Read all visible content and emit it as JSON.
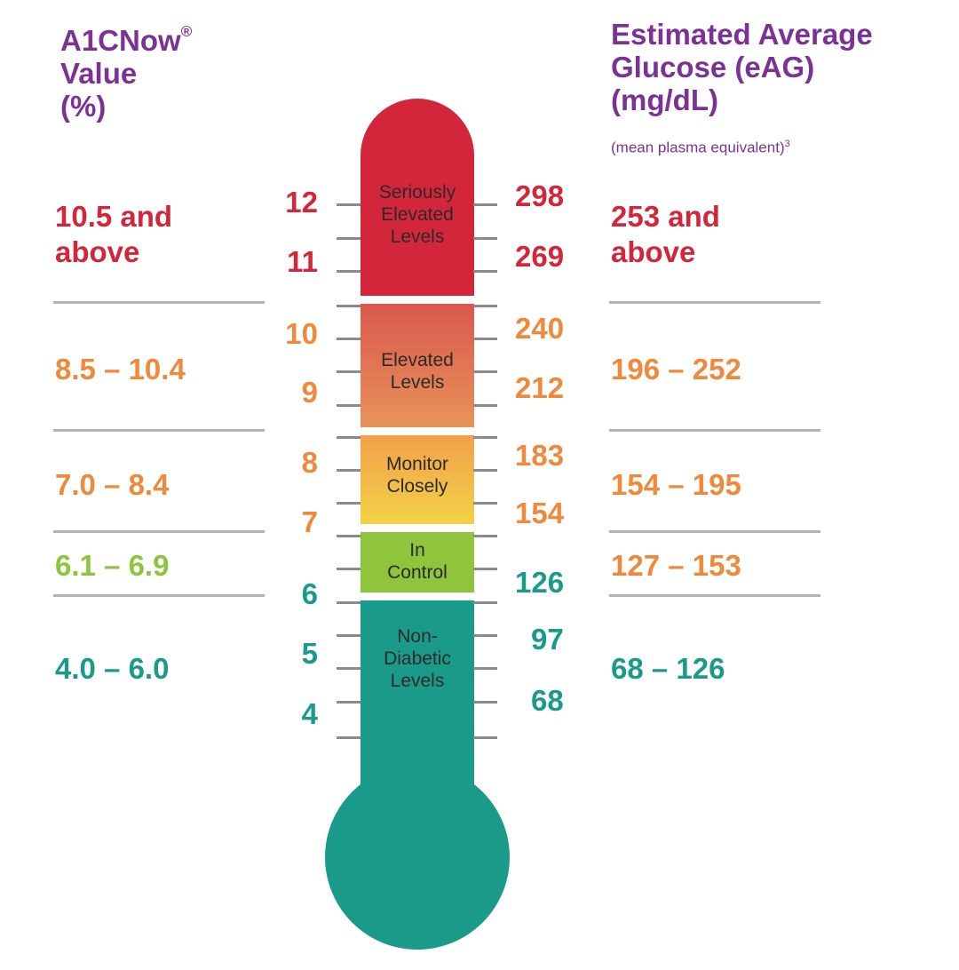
{
  "colors": {
    "purple": "#7b3294",
    "red": "#d4263a",
    "orange": "#ef8a3c",
    "lime": "#8fc43d",
    "teal": "#1a9b8a"
  },
  "left_header": {
    "line1": "A1CNow",
    "reg": "®",
    "line2": "Value",
    "line3": "(%)"
  },
  "right_header": {
    "line1": "Estimated Average",
    "line2": "Glucose (eAG)",
    "line3": "(mg/dL)",
    "note": "(mean plasma equivalent)",
    "note_sup": "3"
  },
  "bands": [
    {
      "a1c_range_line1": "10.5 and",
      "a1c_range_line2": "above",
      "eag_range_line1": "253 and",
      "eag_range_line2": "above",
      "level_line1": "Seriously",
      "level_line2": "Elevated",
      "level_line3": "Levels"
    },
    {
      "a1c_range": "8.5 – 10.4",
      "eag_range": "196 – 252",
      "level_line1": "Elevated",
      "level_line2": "Levels"
    },
    {
      "a1c_range": "7.0 – 8.4",
      "eag_range": "154 – 195",
      "level_line1": "Monitor",
      "level_line2": "Closely"
    },
    {
      "a1c_range": "6.1 – 6.9",
      "eag_range": "127 – 153",
      "level_line1": "In",
      "level_line2": "Control"
    },
    {
      "a1c_range": "4.0 – 6.0",
      "eag_range": "68 – 126",
      "level_line1": "Non-",
      "level_line2": "Diabetic",
      "level_line3": "Levels"
    }
  ],
  "a1c_ticks": [
    "12",
    "11",
    "10",
    "9",
    "8",
    "7",
    "6",
    "5",
    "4"
  ],
  "eag_ticks": [
    "298",
    "269",
    "240",
    "212",
    "183",
    "154",
    "126",
    "97",
    "68"
  ]
}
